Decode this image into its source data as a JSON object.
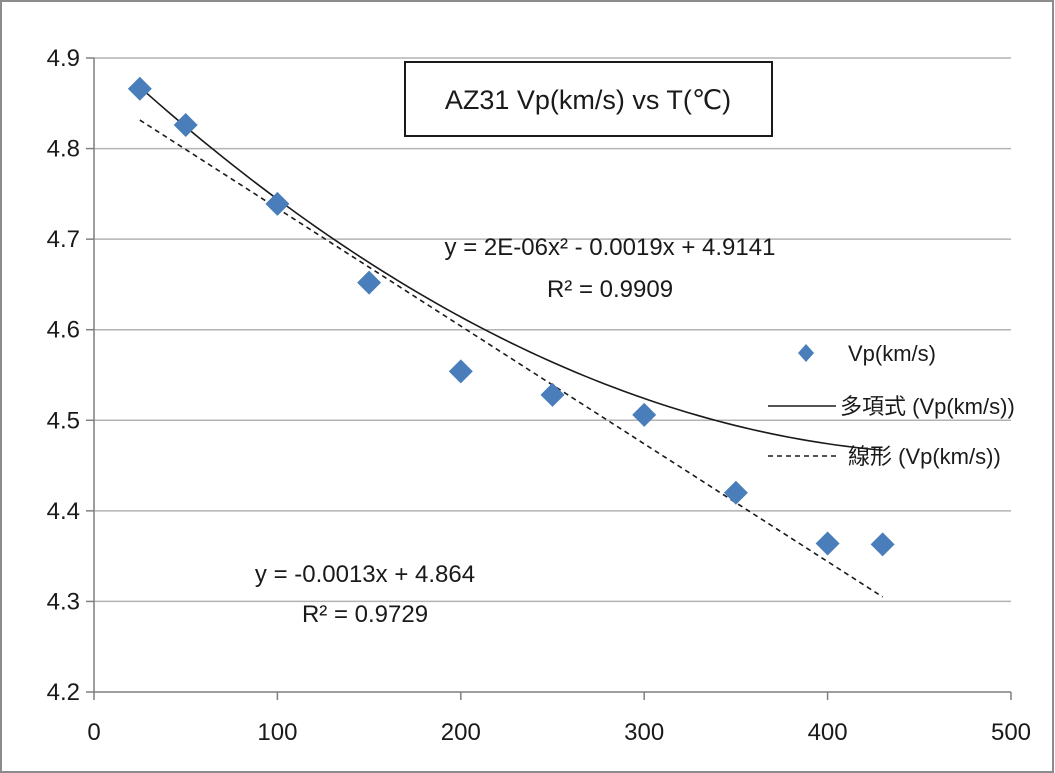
{
  "chart_data": {
    "type": "scatter",
    "title": "AZ31  Vp(km/s) vs  T(℃)",
    "xlim": [
      0,
      500
    ],
    "ylim": [
      4.2,
      4.9
    ],
    "x_ticks": [
      "0",
      "100",
      "200",
      "300",
      "400",
      "500"
    ],
    "y_ticks": [
      "4.2",
      "4.3",
      "4.4",
      "4.5",
      "4.6",
      "4.7",
      "4.8",
      "4.9"
    ],
    "grid": "horizontal",
    "legend_position": "right",
    "series": [
      {
        "name": "Vp(km/s)",
        "kind": "scatter",
        "marker": "diamond",
        "color": "#4a7ebb",
        "x": [
          25,
          50,
          100,
          150,
          200,
          250,
          300,
          350,
          400,
          430
        ],
        "y": [
          4.866,
          4.826,
          4.739,
          4.652,
          4.554,
          4.528,
          4.506,
          4.42,
          4.364,
          4.363
        ]
      }
    ],
    "trendlines": [
      {
        "name": "多項式 (Vp(km/s))",
        "kind": "polynomial",
        "style": "solid",
        "color": "#1a1a1a",
        "coefficients": {
          "a2": 2e-06,
          "a1": -0.0019,
          "a0": 4.9141
        },
        "x_range": [
          25,
          430
        ],
        "equation": "y = 2E-06x² - 0.0019x + 4.9141",
        "r2": "R² = 0.9909"
      },
      {
        "name": "線形 (Vp(km/s))",
        "kind": "linear",
        "style": "dashed",
        "color": "#1a1a1a",
        "coefficients": {
          "a1": -0.0013,
          "a0": 4.864
        },
        "x_range": [
          25,
          430
        ],
        "equation": "y = -0.0013x + 4.864",
        "r2": "R² = 0.9729"
      }
    ]
  }
}
